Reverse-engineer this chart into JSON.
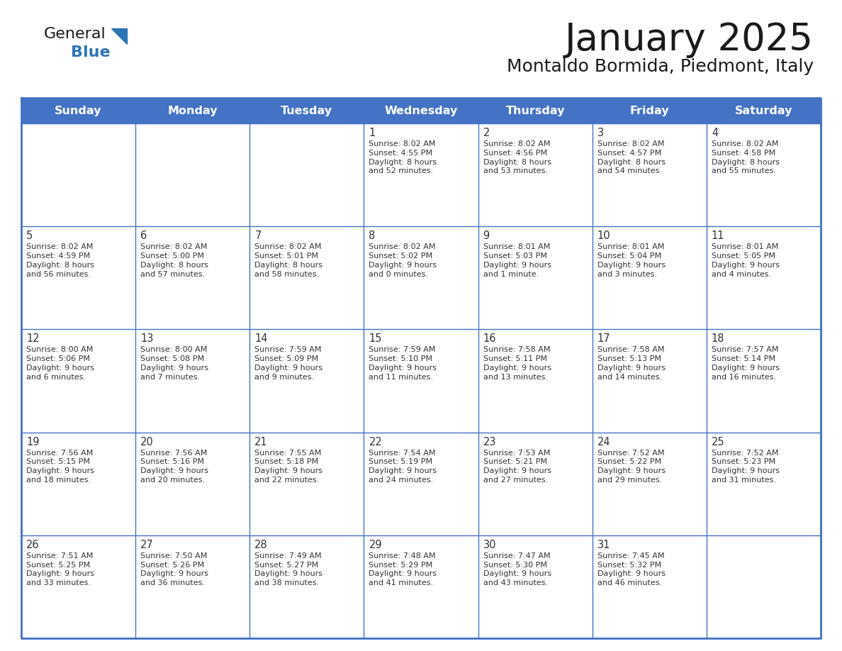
{
  "title": "January 2025",
  "subtitle": "Montaldo Bormida, Piedmont, Italy",
  "header_bg": "#4472C4",
  "header_text_color": "#FFFFFF",
  "border_color": "#4472C4",
  "text_color": "#333333",
  "days_of_week": [
    "Sunday",
    "Monday",
    "Tuesday",
    "Wednesday",
    "Thursday",
    "Friday",
    "Saturday"
  ],
  "calendar_data": [
    [
      {
        "day": "",
        "info": ""
      },
      {
        "day": "",
        "info": ""
      },
      {
        "day": "",
        "info": ""
      },
      {
        "day": "1",
        "info": "Sunrise: 8:02 AM\nSunset: 4:55 PM\nDaylight: 8 hours\nand 52 minutes."
      },
      {
        "day": "2",
        "info": "Sunrise: 8:02 AM\nSunset: 4:56 PM\nDaylight: 8 hours\nand 53 minutes."
      },
      {
        "day": "3",
        "info": "Sunrise: 8:02 AM\nSunset: 4:57 PM\nDaylight: 8 hours\nand 54 minutes."
      },
      {
        "day": "4",
        "info": "Sunrise: 8:02 AM\nSunset: 4:58 PM\nDaylight: 8 hours\nand 55 minutes."
      }
    ],
    [
      {
        "day": "5",
        "info": "Sunrise: 8:02 AM\nSunset: 4:59 PM\nDaylight: 8 hours\nand 56 minutes."
      },
      {
        "day": "6",
        "info": "Sunrise: 8:02 AM\nSunset: 5:00 PM\nDaylight: 8 hours\nand 57 minutes."
      },
      {
        "day": "7",
        "info": "Sunrise: 8:02 AM\nSunset: 5:01 PM\nDaylight: 8 hours\nand 58 minutes."
      },
      {
        "day": "8",
        "info": "Sunrise: 8:02 AM\nSunset: 5:02 PM\nDaylight: 9 hours\nand 0 minutes."
      },
      {
        "day": "9",
        "info": "Sunrise: 8:01 AM\nSunset: 5:03 PM\nDaylight: 9 hours\nand 1 minute."
      },
      {
        "day": "10",
        "info": "Sunrise: 8:01 AM\nSunset: 5:04 PM\nDaylight: 9 hours\nand 3 minutes."
      },
      {
        "day": "11",
        "info": "Sunrise: 8:01 AM\nSunset: 5:05 PM\nDaylight: 9 hours\nand 4 minutes."
      }
    ],
    [
      {
        "day": "12",
        "info": "Sunrise: 8:00 AM\nSunset: 5:06 PM\nDaylight: 9 hours\nand 6 minutes."
      },
      {
        "day": "13",
        "info": "Sunrise: 8:00 AM\nSunset: 5:08 PM\nDaylight: 9 hours\nand 7 minutes."
      },
      {
        "day": "14",
        "info": "Sunrise: 7:59 AM\nSunset: 5:09 PM\nDaylight: 9 hours\nand 9 minutes."
      },
      {
        "day": "15",
        "info": "Sunrise: 7:59 AM\nSunset: 5:10 PM\nDaylight: 9 hours\nand 11 minutes."
      },
      {
        "day": "16",
        "info": "Sunrise: 7:58 AM\nSunset: 5:11 PM\nDaylight: 9 hours\nand 13 minutes."
      },
      {
        "day": "17",
        "info": "Sunrise: 7:58 AM\nSunset: 5:13 PM\nDaylight: 9 hours\nand 14 minutes."
      },
      {
        "day": "18",
        "info": "Sunrise: 7:57 AM\nSunset: 5:14 PM\nDaylight: 9 hours\nand 16 minutes."
      }
    ],
    [
      {
        "day": "19",
        "info": "Sunrise: 7:56 AM\nSunset: 5:15 PM\nDaylight: 9 hours\nand 18 minutes."
      },
      {
        "day": "20",
        "info": "Sunrise: 7:56 AM\nSunset: 5:16 PM\nDaylight: 9 hours\nand 20 minutes."
      },
      {
        "day": "21",
        "info": "Sunrise: 7:55 AM\nSunset: 5:18 PM\nDaylight: 9 hours\nand 22 minutes."
      },
      {
        "day": "22",
        "info": "Sunrise: 7:54 AM\nSunset: 5:19 PM\nDaylight: 9 hours\nand 24 minutes."
      },
      {
        "day": "23",
        "info": "Sunrise: 7:53 AM\nSunset: 5:21 PM\nDaylight: 9 hours\nand 27 minutes."
      },
      {
        "day": "24",
        "info": "Sunrise: 7:52 AM\nSunset: 5:22 PM\nDaylight: 9 hours\nand 29 minutes."
      },
      {
        "day": "25",
        "info": "Sunrise: 7:52 AM\nSunset: 5:23 PM\nDaylight: 9 hours\nand 31 minutes."
      }
    ],
    [
      {
        "day": "26",
        "info": "Sunrise: 7:51 AM\nSunset: 5:25 PM\nDaylight: 9 hours\nand 33 minutes."
      },
      {
        "day": "27",
        "info": "Sunrise: 7:50 AM\nSunset: 5:26 PM\nDaylight: 9 hours\nand 36 minutes."
      },
      {
        "day": "28",
        "info": "Sunrise: 7:49 AM\nSunset: 5:27 PM\nDaylight: 9 hours\nand 38 minutes."
      },
      {
        "day": "29",
        "info": "Sunrise: 7:48 AM\nSunset: 5:29 PM\nDaylight: 9 hours\nand 41 minutes."
      },
      {
        "day": "30",
        "info": "Sunrise: 7:47 AM\nSunset: 5:30 PM\nDaylight: 9 hours\nand 43 minutes."
      },
      {
        "day": "31",
        "info": "Sunrise: 7:45 AM\nSunset: 5:32 PM\nDaylight: 9 hours\nand 46 minutes."
      },
      {
        "day": "",
        "info": ""
      }
    ]
  ],
  "logo_general_color": "#1a1a1a",
  "logo_blue_color": "#2E75B6",
  "logo_triangle_color": "#2E75B6",
  "fig_width": 11.88,
  "fig_height": 9.18,
  "dpi": 100
}
